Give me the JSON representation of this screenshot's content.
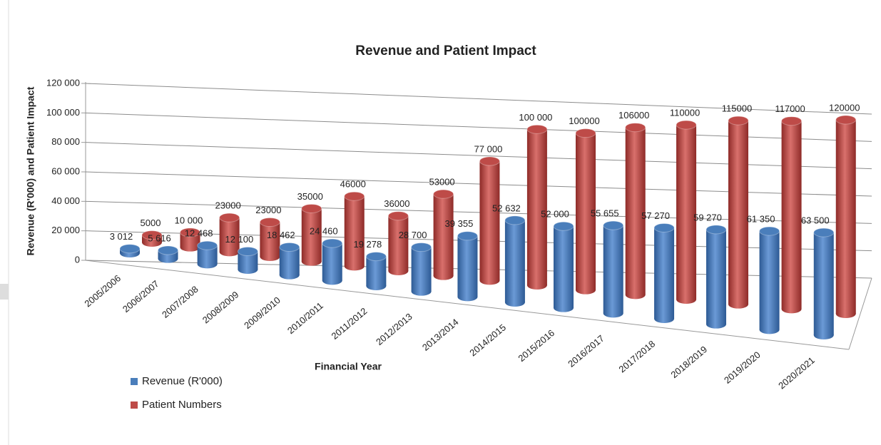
{
  "chart_data": {
    "type": "bar3d",
    "title": "Revenue and Patient Impact",
    "y_label": "Revenue (R'000) and Patient Impact",
    "x_label": "Financial Year",
    "categories": [
      "2005/2006",
      "2006/2007",
      "2007/2008",
      "2008/2009",
      "2009/2010",
      "2010/2011",
      "2011/2012",
      "2012/2013",
      "2013/2014",
      "2014/2015",
      "2015/2016",
      "2016/2017",
      "2017/2018",
      "2018/2019",
      "2019/2020",
      "2020/2021"
    ],
    "series": [
      {
        "name": "Revenue (R'000)",
        "color": "#4a7ebb",
        "values": [
          3012,
          5616,
          12468,
          12100,
          18462,
          24460,
          19278,
          28700,
          39355,
          52632,
          52000,
          55655,
          57270,
          59270,
          61350,
          63500
        ],
        "value_labels": [
          "3 012",
          "5 616",
          "12 468",
          "12 100",
          "18 462",
          "24 460",
          "19 278",
          "28 700",
          "39 355",
          "52 632",
          "52 000",
          "55 655",
          "57 270",
          "59 270",
          "61 350",
          "63 500"
        ]
      },
      {
        "name": "Patient Numbers",
        "color": "#be4b48",
        "values": [
          5000,
          10000,
          23000,
          23000,
          35000,
          46000,
          36000,
          53000,
          77000,
          100000,
          100000,
          106000,
          110000,
          115000,
          117000,
          120000
        ],
        "value_labels": [
          "5000",
          "10 000",
          "23000",
          "23000",
          "35000",
          "46000",
          "36000",
          "53000",
          "77 000",
          "100 000",
          "100000",
          "106000",
          "110000",
          "115000",
          "117000",
          "120000"
        ]
      }
    ],
    "ylim": [
      0,
      120000
    ],
    "yticks": [
      0,
      {
        "value": 20000,
        "label": "20 000"
      },
      {
        "value": 40000,
        "label": "40 000"
      },
      {
        "value": 60000,
        "label": "60 000"
      },
      {
        "value": 80000,
        "label": "80 000"
      },
      {
        "value": 100000,
        "label": "100 000"
      },
      {
        "value": 120000,
        "label": "120 000"
      }
    ],
    "grid": true,
    "legend": "bottom-left"
  }
}
